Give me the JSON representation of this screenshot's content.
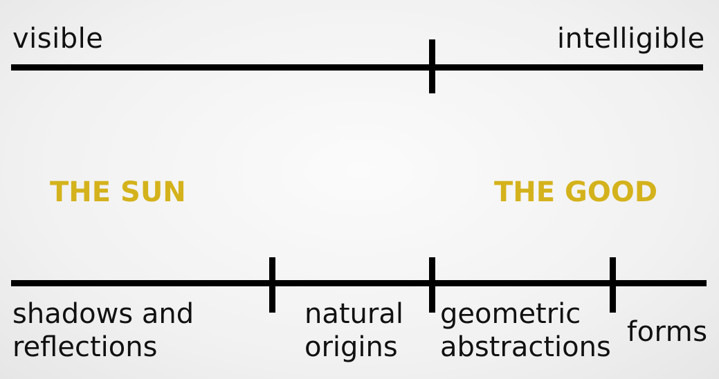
{
  "top_line": {
    "left_label": "visible",
    "right_label": "intelligible"
  },
  "middle": {
    "left_label": "THE SUN",
    "right_label": "THE GOOD",
    "accent_color": "#d4b21c"
  },
  "bottom_line": {
    "segments": [
      {
        "line1": "shadows and",
        "line2": "reflections"
      },
      {
        "line1": "natural",
        "line2": "origins"
      },
      {
        "line1": "geometric",
        "line2": "abstractions"
      },
      {
        "line1": "forms",
        "line2": ""
      }
    ]
  },
  "line_color": "#000000"
}
